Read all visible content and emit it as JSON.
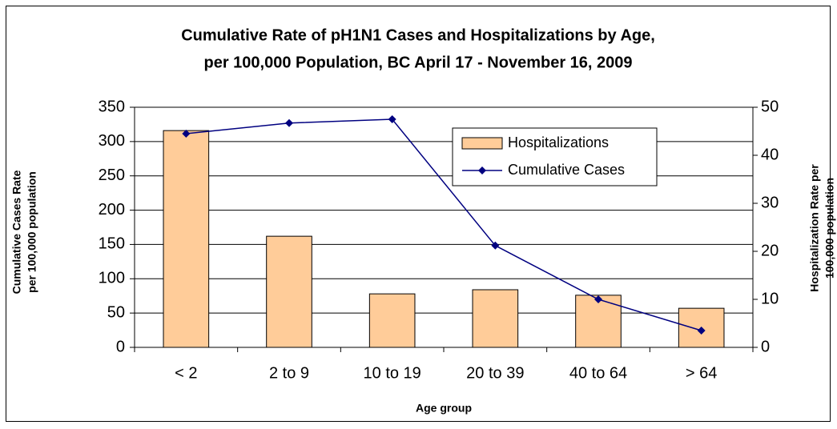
{
  "chart_data": {
    "type": "bar",
    "title": [
      "Cumulative Rate of pH1N1 Cases and Hospitalizations by Age,",
      "per 100,000 Population, BC April 17 - November 16, 2009"
    ],
    "x_label": "Age group",
    "y_label": [
      "Cumulative Cases  Rate",
      "per 100,000 population"
    ],
    "y2_label": [
      "Hospitalization Rate per",
      "100,000 population"
    ],
    "categories": [
      "< 2",
      "2 to 9",
      "10 to 19",
      "20 to 39",
      "40 to 64",
      "> 64"
    ],
    "series": [
      {
        "name": "Hospitalizations",
        "type": "bar",
        "color": "#ffcc99",
        "values": [
          316,
          162,
          78,
          84,
          76,
          57
        ]
      },
      {
        "name": "Cumulative Cases",
        "type": "line",
        "axis": "y2",
        "color": "#000080",
        "values": [
          44.5,
          46.7,
          47.5,
          21.2,
          10,
          3.5
        ]
      }
    ],
    "ylim": [
      0,
      350
    ],
    "yticks": [
      0,
      50,
      100,
      150,
      200,
      250,
      300,
      350
    ],
    "y2lim": [
      0,
      50
    ],
    "y2ticks": [
      0,
      10,
      20,
      30,
      40,
      50
    ],
    "grid": true,
    "legend": "top-right"
  }
}
